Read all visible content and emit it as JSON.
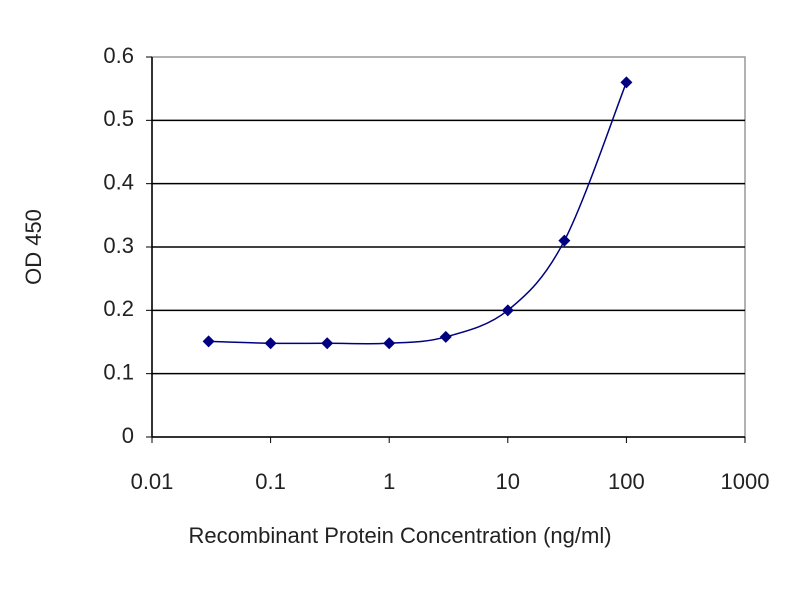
{
  "chart_data": {
    "type": "line",
    "xlabel": "Recombinant Protein Concentration (ng/ml)",
    "ylabel": "OD 450",
    "x": [
      0.03,
      0.1,
      0.3,
      1,
      3,
      10,
      30,
      100
    ],
    "series": [
      {
        "color": "#000080",
        "values": [
          0.151,
          0.148,
          0.148,
          0.148,
          0.158,
          0.2,
          0.31,
          0.56
        ]
      }
    ],
    "xscale": "log",
    "xlim": [
      0.01,
      1000
    ],
    "xticks": [
      0.01,
      0.1,
      1,
      10,
      100,
      1000
    ],
    "ylim": [
      0,
      0.6
    ],
    "yticks": [
      0,
      0.1,
      0.2,
      0.3,
      0.4,
      0.5,
      0.6
    ],
    "grid": true
  }
}
